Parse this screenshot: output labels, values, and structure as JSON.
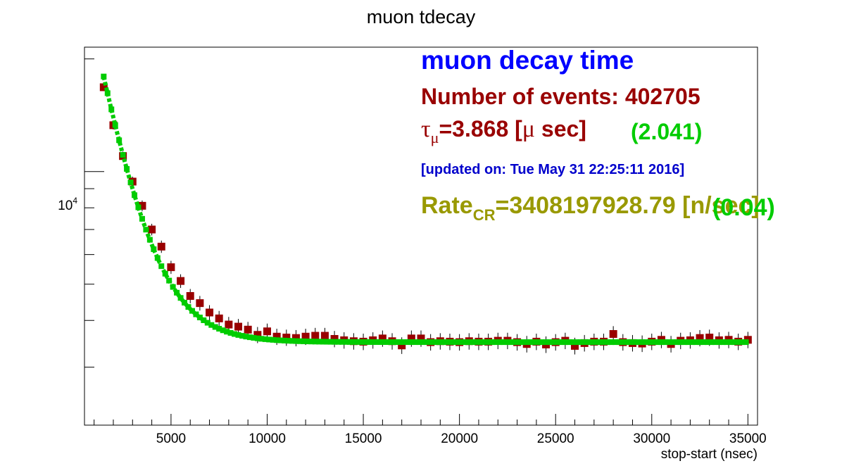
{
  "chart_data": {
    "type": "scatter",
    "title": "muon tdecay",
    "xlabel": "stop-start (nsec)",
    "ylabel": "",
    "xlim": [
      500,
      35500
    ],
    "ylim": [
      2100,
      21500
    ],
    "y_scale": "log",
    "x_ticks": [
      5000,
      10000,
      15000,
      20000,
      25000,
      30000,
      35000
    ],
    "x_tick_labels": [
      "5000",
      "10000",
      "15000",
      "20000",
      "25000",
      "30000",
      "35000"
    ],
    "y_tick_major": 10000,
    "y_tick_label_base": "10",
    "y_tick_label_exp": "4",
    "y_minor_ticks": [
      3000,
      4000,
      5000,
      6000,
      7000,
      8000,
      9000,
      20000
    ],
    "grid": false,
    "series": [
      {
        "kind": "data",
        "color": "#990000",
        "x": [
          1500,
          2000,
          2500,
          3000,
          3500,
          4000,
          4500,
          5000,
          5500,
          6000,
          6500,
          7000,
          7500,
          8000,
          8500,
          9000,
          9500,
          10000,
          10500,
          11000,
          11500,
          12000,
          12500,
          13000,
          13500,
          14000,
          14500,
          15000,
          15500,
          16000,
          16500,
          17000,
          17500,
          18000,
          18500,
          19000,
          19500,
          20000,
          20500,
          21000,
          21500,
          22000,
          22500,
          23000,
          23500,
          24000,
          24500,
          25000,
          25500,
          26000,
          26500,
          27000,
          27500,
          28000,
          28500,
          29000,
          29500,
          30000,
          30500,
          31000,
          31500,
          32000,
          32500,
          33000,
          33500,
          34000,
          34500,
          35000
        ],
        "y": [
          16800,
          13300,
          11000,
          9400,
          8100,
          7000,
          6300,
          5550,
          5100,
          4650,
          4450,
          4200,
          4050,
          3900,
          3850,
          3780,
          3660,
          3740,
          3620,
          3600,
          3590,
          3620,
          3640,
          3640,
          3570,
          3540,
          3520,
          3510,
          3540,
          3580,
          3520,
          3430,
          3580,
          3580,
          3500,
          3520,
          3510,
          3500,
          3520,
          3510,
          3510,
          3530,
          3530,
          3500,
          3460,
          3510,
          3450,
          3500,
          3530,
          3420,
          3480,
          3510,
          3510,
          3680,
          3500,
          3480,
          3470,
          3510,
          3550,
          3460,
          3530,
          3540,
          3590,
          3600,
          3540,
          3550,
          3510,
          3550
        ]
      },
      {
        "kind": "fit",
        "color": "#00cc00",
        "x_range": [
          1500,
          35000
        ],
        "constant": 3500,
        "amplitude": 19950,
        "tau_ns": 1550
      }
    ],
    "annotations": [
      {
        "key": "heading",
        "text": "muon decay time",
        "color": "#0000ff"
      },
      {
        "key": "events",
        "text": "Number of events: 402705",
        "color": "#990000"
      },
      {
        "key": "tau_value",
        "text": "=3.868 [",
        "color": "#990000"
      },
      {
        "key": "tau_err",
        "text": "(2.041)",
        "color": "#00cc00"
      },
      {
        "key": "updated",
        "text": "[updated on: Tue May 31 22:25:11 2016]",
        "color": "#0000cc"
      },
      {
        "key": "rate_value",
        "text": "=3408197928.79 [",
        "color": "#999900"
      },
      {
        "key": "rate_err",
        "text": "(0.04)",
        "color": "#00cc00"
      }
    ],
    "tau_symbol": "τ",
    "tau_sub": "μ",
    "tau_unit_sym": "μ",
    "tau_unit_rest": " sec]",
    "rate_base": "Rate",
    "rate_sub": "CR",
    "rate_unit": "n/sec]"
  }
}
